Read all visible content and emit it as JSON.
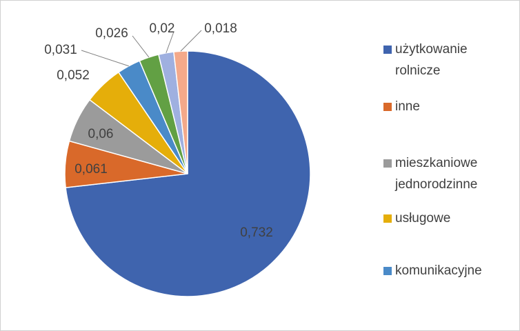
{
  "chart_data": {
    "type": "pie",
    "categories": [
      "użytkowanie rolnicze",
      "inne",
      "mieszkaniowe jednorodzinne",
      "usługowe",
      "komunikacyjne",
      null,
      null,
      null
    ],
    "values": [
      0.732,
      0.061,
      0.06,
      0.052,
      0.031,
      0.026,
      0.02,
      0.018
    ],
    "value_labels": [
      "0,732",
      "0,061",
      "0,06",
      "0,052",
      "0,031",
      "0,026",
      "0,02",
      "0,018"
    ],
    "colors": [
      "#3f64ae",
      "#d9692a",
      "#9b9b9b",
      "#e5ae0a",
      "#4a8ac8",
      "#62a044",
      "#9fb0e0",
      "#f4a98a"
    ],
    "legend": "right"
  }
}
